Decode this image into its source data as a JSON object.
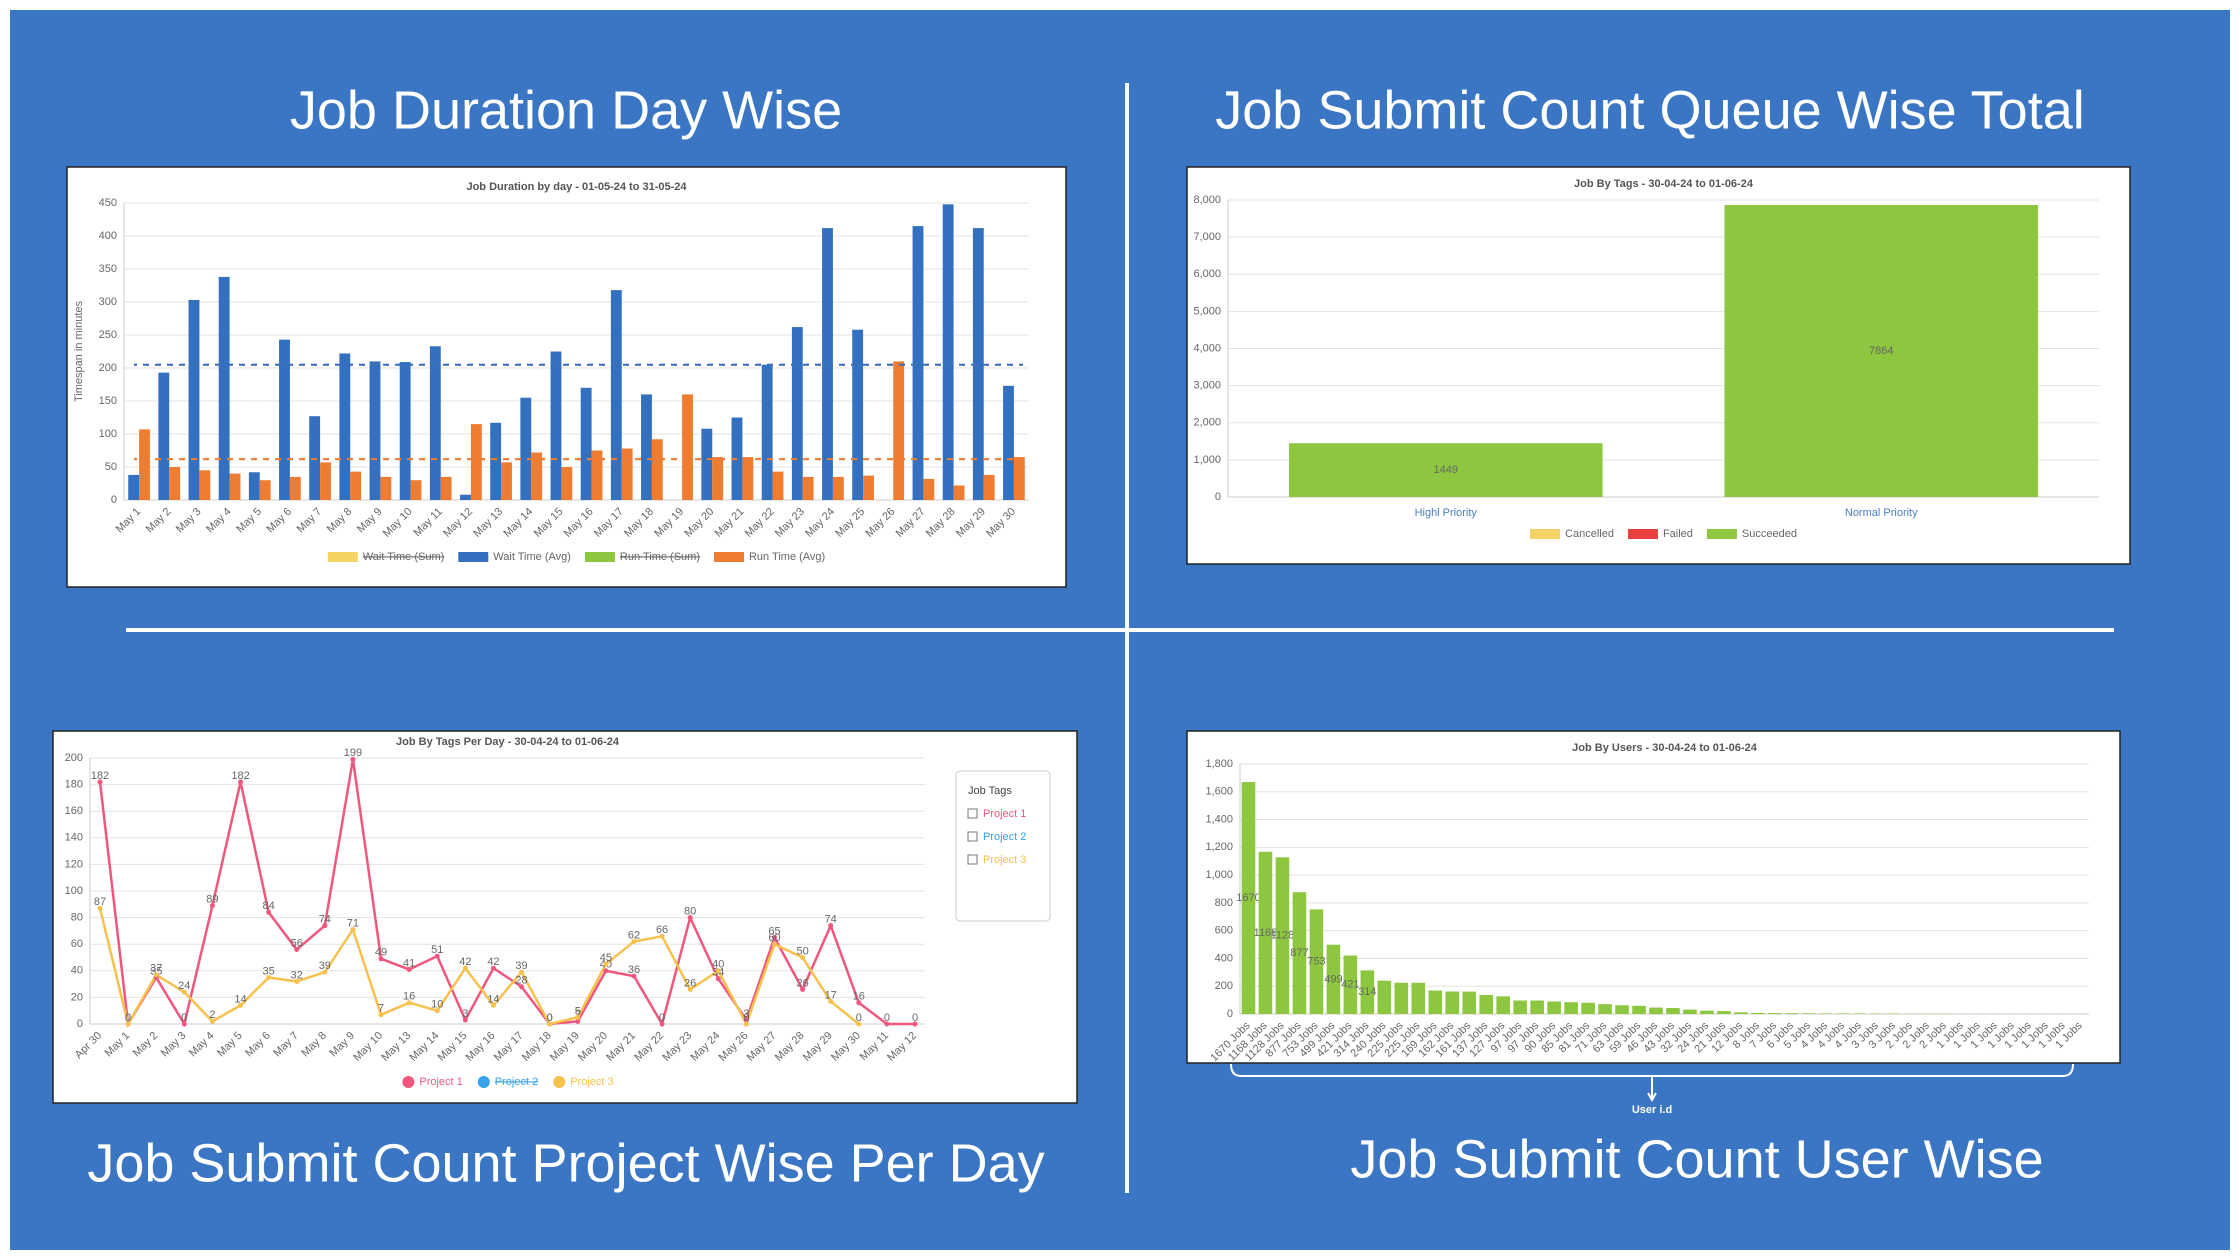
{
  "headings": [
    "Job Duration Day Wise",
    "Job Submit Count Queue Wise Total",
    "Job Submit Count Project Wise Per Day",
    "Job Submit Count User Wise"
  ],
  "chart_data": [
    {
      "type": "bar",
      "title": "Job Duration by day - 01-05-24 to 31-05-24",
      "ylabel": "Timespan in minutes",
      "categories": [
        "May 1",
        "May 2",
        "May 3",
        "May 4",
        "May 5",
        "May 6",
        "May 7",
        "May 8",
        "May 9",
        "May 10",
        "May 11",
        "May 12",
        "May 13",
        "May 14",
        "May 15",
        "May 16",
        "May 17",
        "May 18",
        "May 19",
        "May 20",
        "May 21",
        "May 22",
        "May 23",
        "May 24",
        "May 25",
        "May 26",
        "May 27",
        "May 28",
        "May 29",
        "May 30"
      ],
      "series": [
        {
          "name": "Wait Time (Sum)",
          "color": "#f5d264",
          "hidden": true
        },
        {
          "name": "Wait Time (Avg)",
          "color": "#3470c0",
          "values": [
            38,
            193,
            303,
            338,
            42,
            243,
            127,
            222,
            210,
            209,
            233,
            8,
            117,
            155,
            225,
            170,
            318,
            160,
            null,
            108,
            125,
            205,
            262,
            412,
            258,
            null,
            415,
            448,
            412,
            173
          ]
        },
        {
          "name": "Run Time (Sum)",
          "color": "#8dc63f",
          "hidden": true
        },
        {
          "name": "Run Time (Avg)",
          "color": "#ef7d31",
          "values": [
            107,
            50,
            45,
            40,
            30,
            35,
            57,
            43,
            35,
            30,
            35,
            115,
            57,
            72,
            50,
            75,
            78,
            92,
            160,
            65,
            65,
            43,
            35,
            35,
            37,
            210,
            32,
            22,
            38,
            65
          ]
        }
      ],
      "reference_lines": [
        {
          "value": 205,
          "color": "#3470c0"
        },
        {
          "value": 62,
          "color": "#ef7d31"
        }
      ],
      "ylim": [
        0,
        450
      ],
      "yticks": [
        0,
        50,
        100,
        150,
        200,
        250,
        300,
        350,
        400,
        450
      ],
      "grid": true
    },
    {
      "type": "bar",
      "stacked": true,
      "title": "Job By Tags - 30-04-24 to 01-06-24",
      "categories": [
        "Highl Priority",
        "Normal Priority"
      ],
      "series": [
        {
          "name": "Cancelled",
          "color": "#f5d264",
          "values": [
            0,
            0
          ]
        },
        {
          "name": "Failed",
          "color": "#e8413f",
          "values": [
            0,
            0
          ]
        },
        {
          "name": "Succeeded",
          "color": "#8dc63f",
          "values": [
            1449,
            7864
          ],
          "data_labels": true
        }
      ],
      "ylim": [
        0,
        8000
      ],
      "yticks": [
        0,
        {
          "value": 1000,
          "label": "1,000"
        },
        {
          "value": 2000,
          "label": "2,000"
        },
        {
          "value": 3000,
          "label": "3,000"
        },
        {
          "value": 4000,
          "label": "4,000"
        },
        {
          "value": 5000,
          "label": "5,000"
        },
        {
          "value": 6000,
          "label": "6,000"
        },
        {
          "value": 7000,
          "label": "7,000"
        },
        {
          "value": 8000,
          "label": "8,000"
        }
      ],
      "grid": true
    },
    {
      "type": "line",
      "title": "Job By Tags Per Day - 30-04-24 to 01-06-24",
      "legend_title": "Job Tags",
      "categories": [
        "Apr 30",
        "May 1",
        "May 2",
        "May 3",
        "May 4",
        "May 5",
        "May 6",
        "May 7",
        "May 8",
        "May 9",
        "May 10",
        "May 13",
        "May 14",
        "May 15",
        "May 16",
        "May 17",
        "May 18",
        "May 19",
        "May 20",
        "May 21",
        "May 22",
        "May 23",
        "May 24",
        "May 26",
        "May 27",
        "May 28",
        "May 29",
        "May 30",
        "May 11",
        "May 12"
      ],
      "series": [
        {
          "name": "Project 1",
          "color": "#f0577e",
          "data_labels": true,
          "values": [
            182,
            0,
            35,
            0,
            89,
            182,
            84,
            56,
            74,
            199,
            49,
            41,
            51,
            3,
            42,
            28,
            0,
            2,
            40,
            36,
            0,
            80,
            34,
            3,
            65,
            26,
            74,
            16,
            0,
            0
          ]
        },
        {
          "name": "Project 2",
          "color": "#36a2eb",
          "hidden": true
        },
        {
          "name": "Project 3",
          "color": "#f7c14d",
          "data_labels": true,
          "values": [
            87,
            0,
            37,
            24,
            2,
            14,
            35,
            32,
            39,
            71,
            7,
            16,
            10,
            42,
            14,
            39,
            0,
            5,
            45,
            62,
            66,
            26,
            40,
            0,
            60,
            50,
            17,
            0,
            null,
            null
          ]
        }
      ],
      "ylim": [
        0,
        200
      ],
      "yticks": [
        0,
        20,
        40,
        60,
        80,
        100,
        120,
        140,
        160,
        180,
        200
      ],
      "grid": true
    },
    {
      "type": "bar",
      "title": "Job By Users - 30-04-24 to 01-06-24",
      "annotation": "User i.d",
      "categories": [
        "1670 Jobs",
        "1168 Jobs",
        "1128 Jobs",
        "877 Jobs",
        "753 Jobs",
        "499 Jobs",
        "421 Jobs",
        "314 Jobs",
        "240 Jobs",
        "225 Jobs",
        "225 Jobs",
        "169 Jobs",
        "162 Jobs",
        "161 Jobs",
        "137 Jobs",
        "127 Jobs",
        "97 Jobs",
        "97 Jobs",
        "90 Jobs",
        "85 Jobs",
        "81 Jobs",
        "71 Jobs",
        "63 Jobs",
        "59 Jobs",
        "46 Jobs",
        "43 Jobs",
        "32 Jobs",
        "24 Jobs",
        "21 Jobs",
        "12 Jobs",
        "8 Jobs",
        "7 Jobs",
        "6 Jobs",
        "5 Jobs",
        "4 Jobs",
        "4 Jobs",
        "4 Jobs",
        "3 Jobs",
        "3 Jobs",
        "2 Jobs",
        "2 Jobs",
        "2 Jobs",
        "1 Jobs",
        "1 Jobs",
        "1 Jobs",
        "1 Jobs",
        "1 Jobs",
        "1 Jobs",
        "1 Jobs",
        "1 Jobs"
      ],
      "series": [
        {
          "name": "Jobs",
          "color": "#8dc63f",
          "data_labels": true,
          "show_in_legend": false,
          "values": [
            1670,
            1168,
            1128,
            877,
            753,
            499,
            421,
            314,
            240,
            225,
            225,
            169,
            162,
            161,
            137,
            127,
            97,
            97,
            90,
            85,
            81,
            71,
            63,
            59,
            46,
            43,
            32,
            24,
            21,
            12,
            8,
            7,
            6,
            5,
            4,
            4,
            4,
            3,
            3,
            2,
            2,
            2,
            1,
            1,
            1,
            1,
            1,
            1,
            1,
            1
          ]
        }
      ],
      "ylim": [
        0,
        1800
      ],
      "yticks": [
        0,
        200,
        400,
        600,
        800,
        {
          "value": 1000,
          "label": "1,000"
        },
        {
          "value": 1200,
          "label": "1,200"
        },
        {
          "value": 1400,
          "label": "1,400"
        },
        {
          "value": 1600,
          "label": "1,600"
        },
        {
          "value": 1800,
          "label": "1,800"
        }
      ],
      "grid": true
    }
  ]
}
